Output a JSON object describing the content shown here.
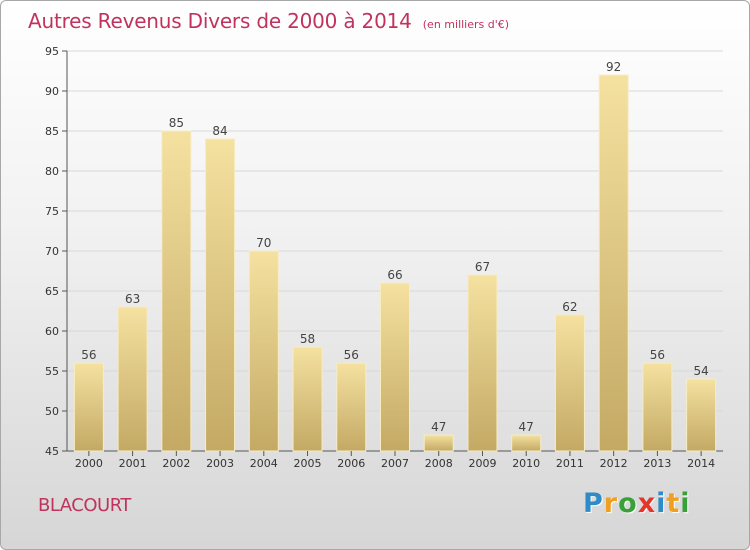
{
  "title": "Autres Revenus Divers de 2000 à 2014",
  "subtitle": "(en milliers d'€)",
  "commune": "BLACOURT",
  "logo": {
    "letters": [
      "P",
      "r",
      "o",
      "x",
      "i",
      "t",
      "i"
    ],
    "colors": [
      "#2e8bc8",
      "#f0a020",
      "#3aa03a",
      "#e5352a",
      "#2e8bc8",
      "#f0a020",
      "#3aa03a"
    ]
  },
  "colors": {
    "accent": "#c0335f",
    "bar_light": "#f5e1a0",
    "bar_dark": "#c3a964",
    "grid": "#d8d8d8"
  },
  "chart_data": {
    "type": "bar",
    "title": "Autres Revenus Divers de 2000 à 2014",
    "subtitle": "(en milliers d'€)",
    "xlabel": "",
    "ylabel": "",
    "categories": [
      "2000",
      "2001",
      "2002",
      "2003",
      "2004",
      "2005",
      "2006",
      "2007",
      "2008",
      "2009",
      "2010",
      "2011",
      "2012",
      "2013",
      "2014"
    ],
    "values": [
      56,
      63,
      85,
      84,
      70,
      58,
      56,
      66,
      47,
      67,
      47,
      62,
      92,
      56,
      54
    ],
    "ylim": [
      45,
      95
    ],
    "yticks": [
      45,
      50,
      55,
      60,
      65,
      70,
      75,
      80,
      85,
      90,
      95
    ],
    "grid": true,
    "legend": "none"
  }
}
